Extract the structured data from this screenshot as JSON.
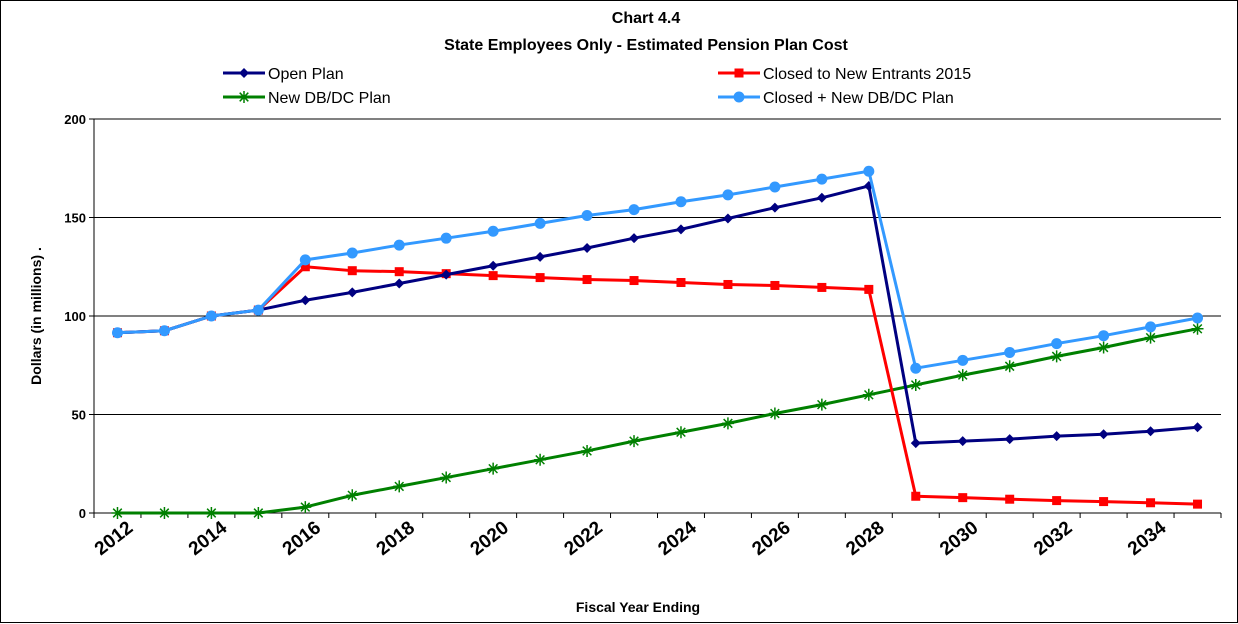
{
  "chart_data": {
    "type": "line",
    "title": "Chart 4.4",
    "subtitle": "State Employees Only - Estimated Pension Plan Cost",
    "xlabel": "Fiscal Year Ending",
    "ylabel": "Dollars (in millions)   .",
    "ylim": [
      0,
      200
    ],
    "yticks": [
      0,
      50,
      100,
      150,
      200
    ],
    "x": [
      2012,
      2013,
      2014,
      2015,
      2016,
      2017,
      2018,
      2019,
      2020,
      2021,
      2022,
      2023,
      2024,
      2025,
      2026,
      2027,
      2028,
      2029,
      2030,
      2031,
      2032,
      2033,
      2034,
      2035
    ],
    "xtick_labels": [
      "2012",
      "2014",
      "2016",
      "2018",
      "2020",
      "2022",
      "2024",
      "2026",
      "2028",
      "2030",
      "2032",
      "2034"
    ],
    "xtick_values": [
      2012,
      2014,
      2016,
      2018,
      2020,
      2022,
      2024,
      2026,
      2028,
      2030,
      2032,
      2034
    ],
    "grid": "horizontal",
    "legend_position": "top",
    "series": [
      {
        "name": "Open Plan",
        "color": "#000080",
        "marker": "diamond",
        "values": [
          91.5,
          92.5,
          100,
          103,
          108,
          112,
          116.5,
          121,
          125.5,
          130,
          134.5,
          139.5,
          144,
          149.5,
          155,
          160,
          166,
          35.5,
          36.5,
          37.5,
          39,
          40,
          41.5,
          43.5
        ]
      },
      {
        "name": "Closed to New Entrants 2015",
        "color": "#ff0000",
        "marker": "square",
        "values": [
          91.5,
          92.5,
          100,
          103,
          125,
          123,
          122.5,
          121.5,
          120.5,
          119.5,
          118.5,
          118,
          117,
          116,
          115.5,
          114.5,
          113.5,
          8.5,
          7.8,
          7,
          6.3,
          5.8,
          5.2,
          4.5
        ]
      },
      {
        "name": "New DB/DC Plan",
        "color": "#008000",
        "marker": "asterisk",
        "values": [
          0,
          0,
          0,
          0,
          3,
          9,
          13.5,
          18,
          22.5,
          27,
          31.5,
          36.5,
          41,
          45.5,
          50.5,
          55,
          60,
          65,
          70,
          74.5,
          79.5,
          84,
          89,
          93.5
        ]
      },
      {
        "name": "Closed + New DB/DC Plan",
        "color": "#3399ff",
        "marker": "circle",
        "values": [
          91.5,
          92.5,
          100,
          103,
          128.5,
          132,
          136,
          139.5,
          143,
          147,
          151,
          154,
          158,
          161.5,
          165.5,
          169.5,
          173.5,
          73.5,
          77.5,
          81.5,
          86,
          90,
          94.5,
          99
        ]
      }
    ]
  }
}
